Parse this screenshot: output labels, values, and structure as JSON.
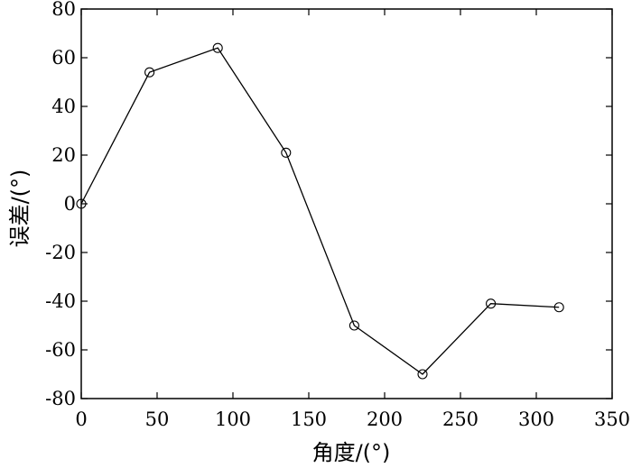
{
  "chart_data": {
    "type": "line",
    "xlabel": "角度/(°)",
    "ylabel": "误差/(°)",
    "xlim": [
      0,
      350
    ],
    "ylim": [
      -80,
      80
    ],
    "x_ticks": [
      0,
      50,
      100,
      150,
      200,
      250,
      300,
      350
    ],
    "y_ticks": [
      -80,
      -60,
      -40,
      -20,
      0,
      20,
      40,
      60,
      80
    ],
    "x_tick_labels": [
      "0",
      "50",
      "100",
      "150",
      "200",
      "250",
      "300",
      "350"
    ],
    "y_tick_labels": [
      "-80",
      "-60",
      "-40",
      "-20",
      "0",
      "20",
      "40",
      "60",
      "80"
    ],
    "grid": false,
    "legend": "none",
    "series": [
      {
        "x": [
          0,
          45,
          90,
          135,
          180,
          225,
          270,
          315
        ],
        "y": [
          0,
          54,
          64,
          21,
          -50,
          -70,
          -41,
          -42.5
        ],
        "color": "#000000",
        "marker": "circle"
      }
    ]
  }
}
